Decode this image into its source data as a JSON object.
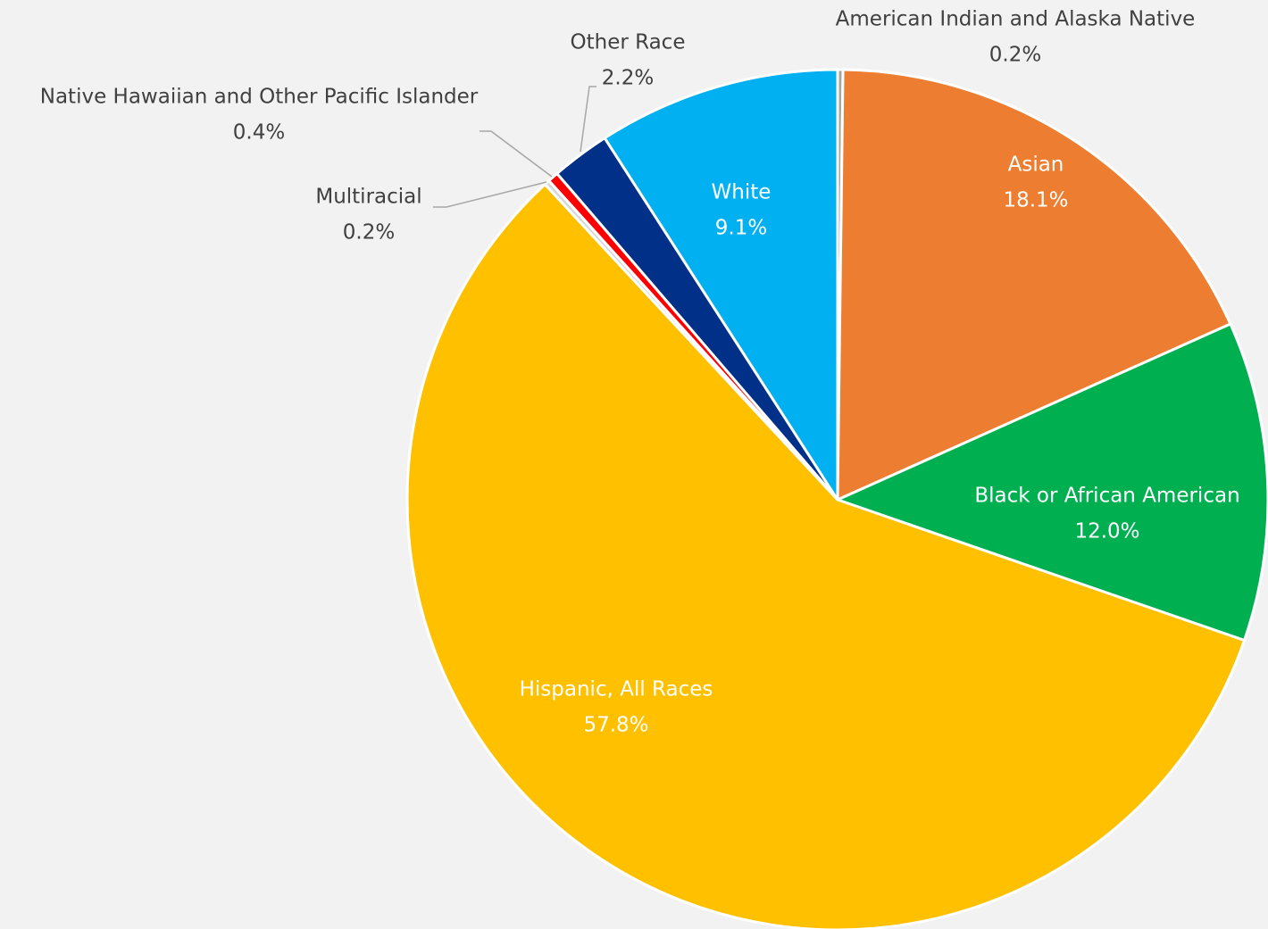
{
  "chart_data": {
    "type": "pie",
    "categories": [
      "American Indian and Alaska Native",
      "Asian",
      "Black or African American",
      "Hispanic, All Races",
      "Multiracial",
      "Native Hawaiian and Other Pacific Islander",
      "Other Race",
      "White"
    ],
    "values": [
      0.2,
      18.1,
      12.0,
      57.8,
      0.2,
      0.4,
      2.2,
      9.1
    ],
    "value_labels": [
      "0.2%",
      "18.1%",
      "12.0%",
      "57.8%",
      "0.2%",
      "0.4%",
      "2.2%",
      "9.1%"
    ],
    "colors": [
      "#a5a5a5",
      "#ed7d31",
      "#00b050",
      "#ffc000",
      "#d9d9d9",
      "#ff0000",
      "#003087",
      "#00b0f0"
    ]
  }
}
